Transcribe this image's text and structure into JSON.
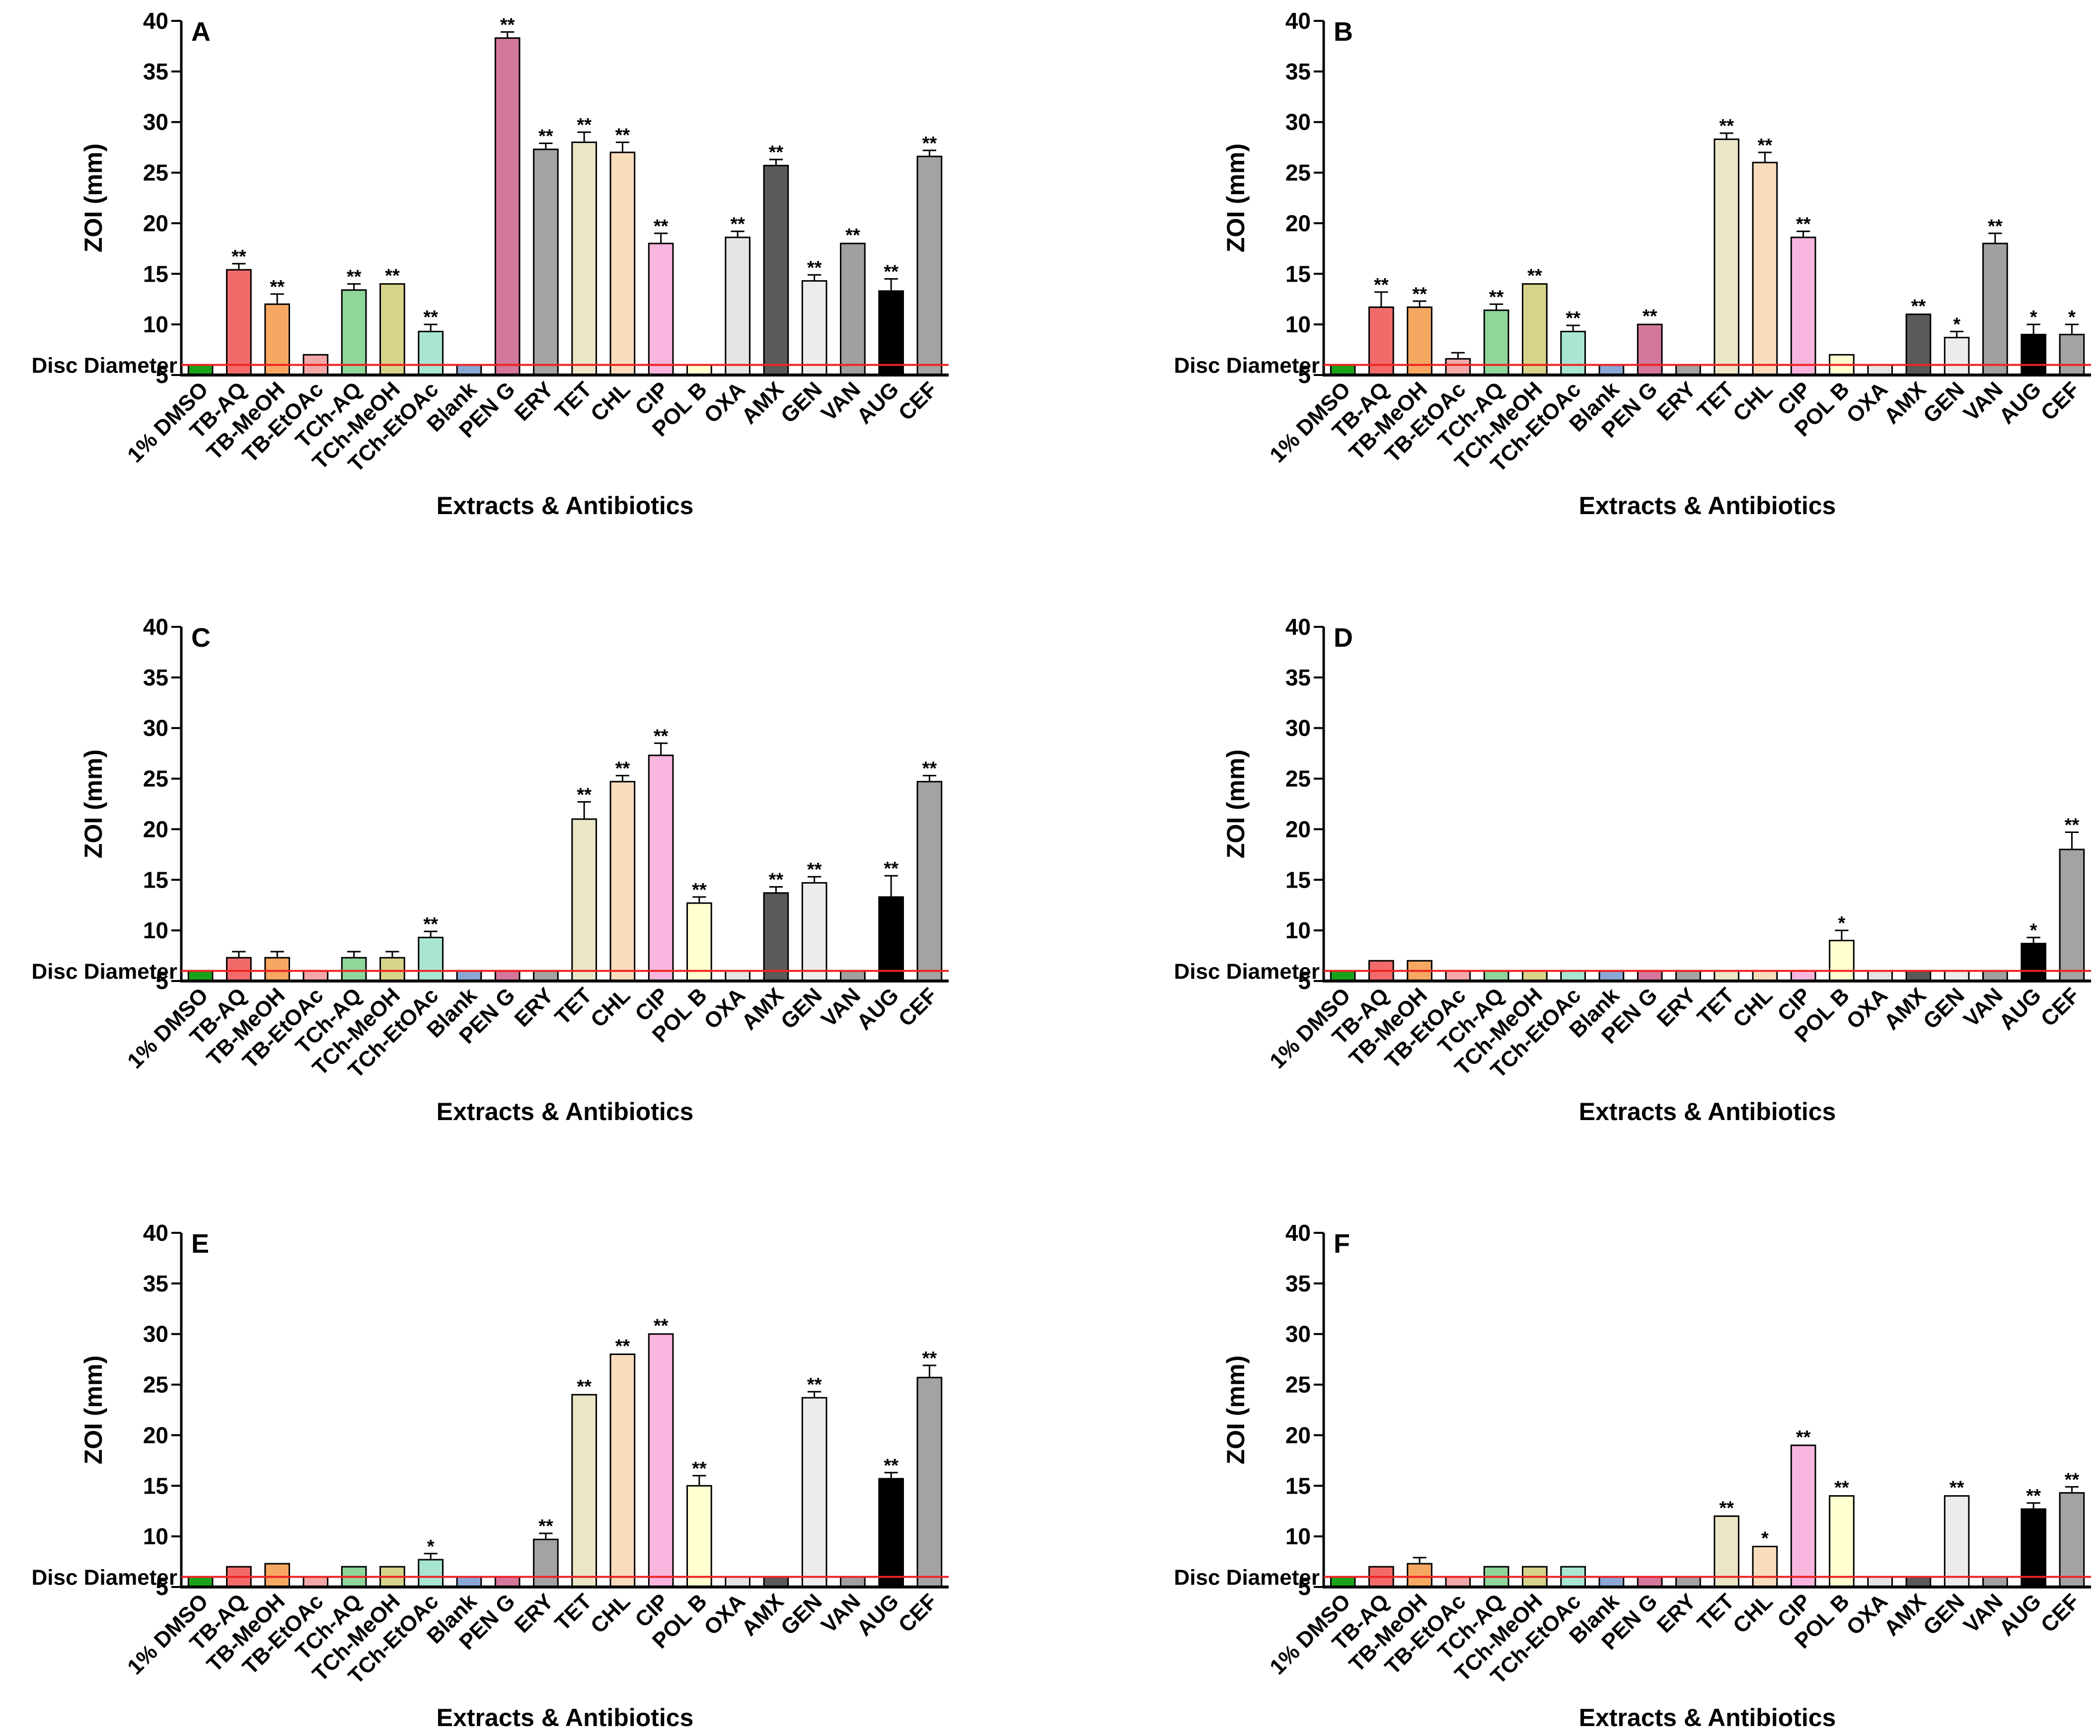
{
  "categories": [
    "1% DMSO",
    "TB-AQ",
    "TB-MeOH",
    "TB-EtOAc",
    "TCh-AQ",
    "TCh-MeOH",
    "TCh-EtOAc",
    "Blank",
    "PEN G",
    "ERY",
    "TET",
    "CHL",
    "CIP",
    "POL B",
    "OXA",
    "AMX",
    "GEN",
    "VAN",
    "AUG",
    "CEF"
  ],
  "colors": [
    "#1aa31a",
    "#f26b6b",
    "#f6a862",
    "#f2a8a8",
    "#8fd69a",
    "#d8d38a",
    "#a8e6d3",
    "#8aa8d6",
    "#d4779c",
    "#a3a3a3",
    "#ece6c8",
    "#f8dcbc",
    "#f8b6de",
    "#ffffd0",
    "#e4e4e4",
    "#5a5a5a",
    "#ececec",
    "#a0a0a0",
    "#000000",
    "#a3a3a3"
  ],
  "reference_line": {
    "label": "Disc Diameter",
    "value": 6,
    "color": "#ee2222"
  },
  "axis_title_y": "ZOI (mm)",
  "axis_title_x": "Extracts & Antibiotics",
  "chart_data": [
    {
      "type": "bar",
      "panel": "A",
      "xlabel": "Extracts & Antibiotics",
      "ylabel": "ZOI (mm)",
      "ylim": [
        5,
        40
      ],
      "yticks": [
        5,
        10,
        15,
        20,
        25,
        30,
        35,
        40
      ],
      "values": [
        6,
        15.4,
        12,
        7,
        13.4,
        14,
        9.3,
        6,
        38.3,
        27.3,
        28,
        27,
        18,
        6,
        18.6,
        25.7,
        14.3,
        18,
        13.3,
        26.6
      ],
      "errors": [
        0,
        0.6,
        1,
        0,
        0.6,
        0,
        0.7,
        0,
        0.6,
        0.6,
        1,
        1,
        1,
        0,
        0.6,
        0.6,
        0.6,
        0,
        1.2,
        0.6
      ],
      "significance": [
        "",
        "**",
        "**",
        "",
        "**",
        "**",
        "**",
        "",
        "**",
        "**",
        "**",
        "**",
        "**",
        "",
        "**",
        "**",
        "**",
        "**",
        "**",
        "**"
      ]
    },
    {
      "type": "bar",
      "panel": "B",
      "xlabel": "Extracts & Antibiotics",
      "ylabel": "ZOI (mm)",
      "ylim": [
        5,
        40
      ],
      "yticks": [
        5,
        10,
        15,
        20,
        25,
        30,
        35,
        40
      ],
      "values": [
        6,
        11.7,
        11.7,
        6.6,
        11.4,
        14,
        9.3,
        6,
        10,
        6,
        28.3,
        26,
        18.6,
        7,
        6,
        11,
        8.7,
        18,
        9,
        9
      ],
      "errors": [
        0,
        1.5,
        0.6,
        0.6,
        0.6,
        0,
        0.6,
        0,
        0,
        0,
        0.6,
        1,
        0.6,
        0,
        0,
        0,
        0.6,
        1,
        1,
        1
      ],
      "significance": [
        "",
        "**",
        "**",
        "",
        "**",
        "**",
        "**",
        "",
        "**",
        "",
        "**",
        "**",
        "**",
        "",
        "",
        "**",
        "*",
        "**",
        "*",
        "*"
      ]
    },
    {
      "type": "bar",
      "panel": "C",
      "xlabel": "Extracts & Antibiotics",
      "ylabel": "ZOI (mm)",
      "ylim": [
        5,
        40
      ],
      "yticks": [
        5,
        10,
        15,
        20,
        25,
        30,
        35,
        40
      ],
      "values": [
        6,
        7.3,
        7.3,
        6,
        7.3,
        7.3,
        9.3,
        6,
        6,
        6,
        21,
        24.7,
        27.3,
        12.7,
        6,
        13.7,
        14.7,
        6,
        13.3,
        24.7
      ],
      "errors": [
        0,
        0.6,
        0.6,
        0,
        0.6,
        0.6,
        0.6,
        0,
        0,
        0,
        1.7,
        0.6,
        1.2,
        0.6,
        0,
        0.6,
        0.6,
        0,
        2.1,
        0.6
      ],
      "significance": [
        "",
        "",
        "",
        "",
        "",
        "",
        "**",
        "",
        "",
        "",
        "**",
        "**",
        "**",
        "**",
        "",
        "**",
        "**",
        "",
        "**",
        "**"
      ]
    },
    {
      "type": "bar",
      "panel": "D",
      "xlabel": "Extracts & Antibiotics",
      "ylabel": "ZOI (mm)",
      "ylim": [
        5,
        40
      ],
      "yticks": [
        5,
        10,
        15,
        20,
        25,
        30,
        35,
        40
      ],
      "values": [
        6,
        7,
        7,
        6,
        6,
        6,
        6,
        6,
        6,
        6,
        6,
        6,
        6,
        9,
        6,
        6,
        6,
        6,
        8.7,
        18
      ],
      "errors": [
        0,
        0,
        0,
        0,
        0,
        0,
        0,
        0,
        0,
        0,
        0,
        0,
        0,
        1,
        0,
        0,
        0,
        0,
        0.6,
        1.7
      ],
      "significance": [
        "",
        "",
        "",
        "",
        "",
        "",
        "",
        "",
        "",
        "",
        "",
        "",
        "",
        "*",
        "",
        "",
        "",
        "",
        "*",
        "**"
      ]
    },
    {
      "type": "bar",
      "panel": "E",
      "xlabel": "Extracts & Antibiotics",
      "ylabel": "ZOI (mm)",
      "ylim": [
        5,
        40
      ],
      "yticks": [
        5,
        10,
        15,
        20,
        25,
        30,
        35,
        40
      ],
      "values": [
        6,
        7,
        7.3,
        6,
        7,
        7,
        7.7,
        6,
        6,
        9.7,
        24,
        28,
        30,
        15,
        6,
        6,
        23.7,
        6,
        15.7,
        25.7
      ],
      "errors": [
        0,
        0,
        0,
        0,
        0,
        0,
        0.6,
        0,
        0,
        0.6,
        0,
        0,
        0,
        1,
        0,
        0,
        0.6,
        0,
        0.6,
        1.2
      ],
      "significance": [
        "",
        "",
        "",
        "",
        "",
        "",
        "*",
        "",
        "",
        "**",
        "**",
        "**",
        "**",
        "**",
        "",
        "",
        "**",
        "",
        "**",
        "**"
      ]
    },
    {
      "type": "bar",
      "panel": "F",
      "xlabel": "Extracts & Antibiotics",
      "ylabel": "ZOI (mm)",
      "ylim": [
        5,
        40
      ],
      "yticks": [
        5,
        10,
        15,
        20,
        25,
        30,
        35,
        40
      ],
      "values": [
        6,
        7,
        7.3,
        6,
        7,
        7,
        7,
        6,
        6,
        6,
        12,
        9,
        19,
        14,
        6,
        6,
        14,
        6,
        12.7,
        14.3
      ],
      "errors": [
        0,
        0,
        0.6,
        0,
        0,
        0,
        0,
        0,
        0,
        0,
        0,
        0,
        0,
        0,
        0,
        0,
        0,
        0,
        0.6,
        0.6
      ],
      "significance": [
        "",
        "",
        "",
        "",
        "",
        "",
        "",
        "",
        "",
        "",
        "**",
        "*",
        "**",
        "**",
        "",
        "",
        "**",
        "",
        "**",
        "**"
      ]
    }
  ]
}
